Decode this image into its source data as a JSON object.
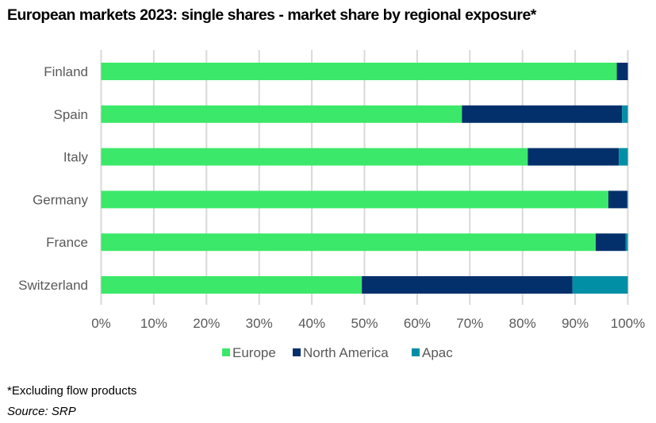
{
  "chart_data": {
    "type": "bar",
    "orientation": "horizontal",
    "stacked": true,
    "title": "European markets 2023: single shares - market share by regional exposure*",
    "xlabel": "",
    "ylabel": "",
    "xlim": [
      0,
      100
    ],
    "x_ticks": [
      "0%",
      "10%",
      "20%",
      "30%",
      "40%",
      "50%",
      "60%",
      "70%",
      "80%",
      "90%",
      "100%"
    ],
    "grid": "vertical",
    "legend_position": "bottom",
    "categories": [
      "Finland",
      "Spain",
      "Italy",
      "Germany",
      "France",
      "Switzerland"
    ],
    "series": [
      {
        "name": "Europe",
        "color": "#3BE869",
        "values": [
          97.9,
          68.5,
          81.0,
          96.3,
          93.9,
          49.5
        ]
      },
      {
        "name": "North America",
        "color": "#03306B",
        "values": [
          2.1,
          30.4,
          17.3,
          3.6,
          5.7,
          40.0
        ]
      },
      {
        "name": "Apac",
        "color": "#018FA5",
        "values": [
          0.0,
          1.1,
          1.7,
          0.1,
          0.4,
          10.5
        ]
      }
    ]
  },
  "footnote": "*Excluding flow products",
  "source": "Source: SRP",
  "colors": {
    "grid": "#D9D9D9",
    "text": "#595959"
  }
}
